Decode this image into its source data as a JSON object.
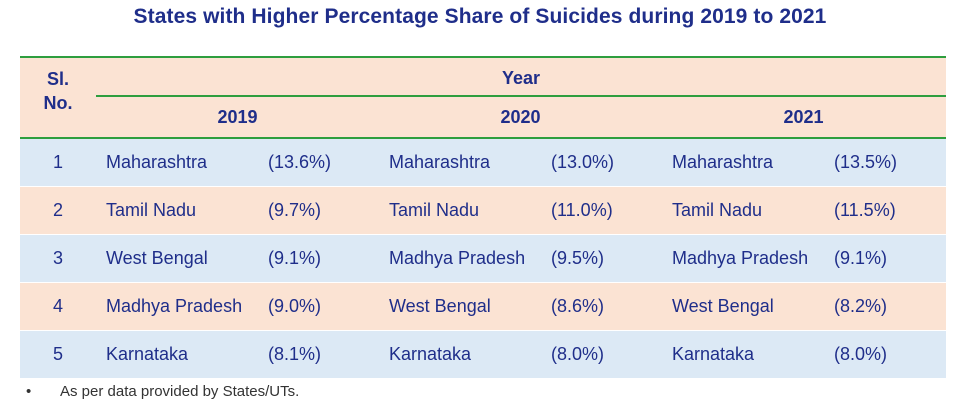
{
  "title": "States with Higher Percentage Share of Suicides during 2019 to 2021",
  "header": {
    "sl_no": "Sl.\nNo.",
    "year": "Year",
    "years": [
      "2019",
      "2020",
      "2021"
    ]
  },
  "rows": [
    {
      "sl": "1",
      "cells": [
        {
          "state": "Maharashtra",
          "pct": "(13.6%)"
        },
        {
          "state": "Maharashtra",
          "pct": "(13.0%)"
        },
        {
          "state": "Maharashtra",
          "pct": "(13.5%)"
        }
      ]
    },
    {
      "sl": "2",
      "cells": [
        {
          "state": "Tamil Nadu",
          "pct": "(9.7%)"
        },
        {
          "state": "Tamil Nadu",
          "pct": "(11.0%)"
        },
        {
          "state": "Tamil Nadu",
          "pct": "(11.5%)"
        }
      ]
    },
    {
      "sl": "3",
      "cells": [
        {
          "state": "West Bengal",
          "pct": "(9.1%)"
        },
        {
          "state": "Madhya Pradesh",
          "pct": "(9.5%)"
        },
        {
          "state": "Madhya Pradesh",
          "pct": "(9.1%)"
        }
      ]
    },
    {
      "sl": "4",
      "cells": [
        {
          "state": "Madhya Pradesh",
          "pct": "(9.0%)"
        },
        {
          "state": "West Bengal",
          "pct": "(8.6%)"
        },
        {
          "state": "West Bengal",
          "pct": "(8.2%)"
        }
      ]
    },
    {
      "sl": "5",
      "cells": [
        {
          "state": "Karnataka",
          "pct": "(8.1%)"
        },
        {
          "state": "Karnataka",
          "pct": "(8.0%)"
        },
        {
          "state": "Karnataka",
          "pct": "(8.0%)"
        }
      ]
    }
  ],
  "footnote": {
    "bullet": "•",
    "text": "As per data provided by States/UTs."
  },
  "colors": {
    "heading_text": "#1f2e8a",
    "rule": "#2e9e3e",
    "peach_row": "#fbe3d3",
    "blue_row": "#dce9f5"
  }
}
